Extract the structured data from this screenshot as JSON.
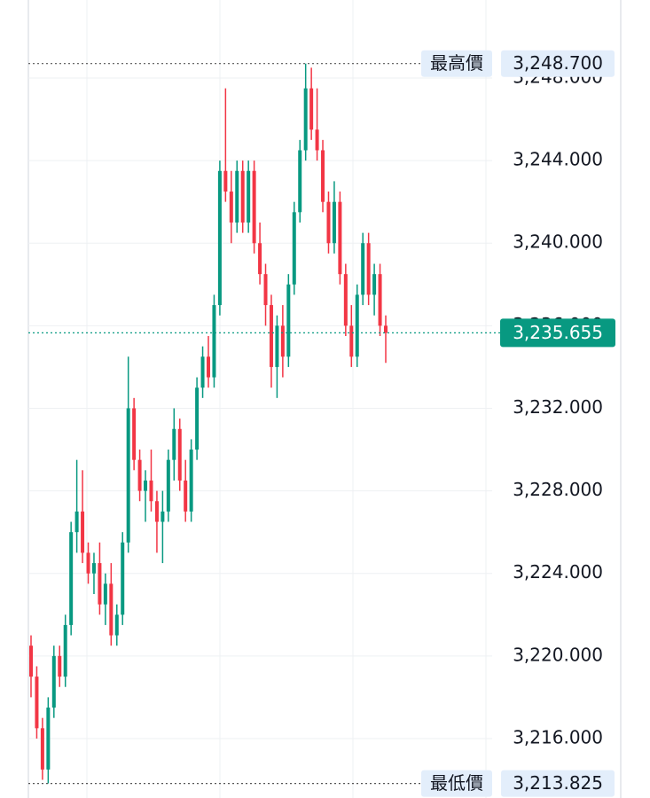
{
  "chart_data": {
    "type": "candlestick",
    "categories": [
      null,
      null,
      null,
      null,
      null,
      null,
      null,
      null,
      null,
      null,
      null,
      null,
      null,
      null,
      null,
      null,
      null,
      null,
      null,
      null,
      null,
      null,
      null,
      null,
      null,
      null,
      null,
      null,
      null,
      null,
      null,
      null,
      null,
      null,
      null,
      null,
      null,
      null,
      null,
      null,
      null,
      null,
      null,
      null,
      null,
      null,
      null,
      null,
      null,
      null,
      null,
      null,
      null,
      null,
      null,
      null,
      null,
      null,
      null,
      null,
      null,
      null,
      null
    ],
    "open": [
      3220.5,
      3219,
      3216.5,
      3214.5,
      3217.5,
      3220,
      3219,
      3221.5,
      3226,
      3227,
      3225,
      3224,
      3224.5,
      3222.5,
      3223.5,
      3221,
      3222,
      3225.5,
      3232,
      3229.5,
      3228,
      3228.5,
      3227.5,
      3226.5,
      3227,
      3229.5,
      3231,
      3228.5,
      3227,
      3230,
      3233,
      3234.5,
      3233.5,
      3237,
      3243.5,
      3242.5,
      3241,
      3243.5,
      3241,
      3243.5,
      3240,
      3238.5,
      3237,
      3234,
      3236,
      3234.5,
      3238,
      3241.5,
      3244.5,
      3247.5,
      3245.5,
      3244.5,
      3242,
      3240,
      3242,
      3238.5,
      3236,
      3234.5,
      3237.5,
      3240,
      3237.5,
      3238.5,
      3236
    ],
    "high": [
      3221,
      3219.5,
      3217,
      3218,
      3220.5,
      3220.5,
      3222,
      3226.5,
      3229.5,
      3229,
      3225.5,
      3225,
      3225.5,
      3224,
      3224.5,
      3222.5,
      3226,
      3234.5,
      3232.5,
      3230,
      3229,
      3230,
      3228,
      3228,
      3230,
      3232,
      3231.5,
      3229.5,
      3230.5,
      3233.5,
      3235,
      3235.5,
      3237.5,
      3244,
      3247.5,
      3243.5,
      3244,
      3244,
      3244,
      3244,
      3241,
      3239,
      3237.5,
      3236.5,
      3237,
      3238.5,
      3242,
      3245,
      3248.7,
      3248.5,
      3247.5,
      3245,
      3242.5,
      3243,
      3242.5,
      3239,
      3237,
      3238,
      3240.5,
      3240.5,
      3239,
      3239,
      3236.5
    ],
    "low": [
      3218,
      3216,
      3214,
      3213.825,
      3217,
      3218.5,
      3218.5,
      3221,
      3225,
      3224.5,
      3223.5,
      3223,
      3222,
      3221.5,
      3220.5,
      3220.5,
      3221.5,
      3225,
      3229,
      3227.5,
      3226.5,
      3227,
      3225,
      3224.5,
      3226.5,
      3228.5,
      3228,
      3226.5,
      3226.5,
      3229.5,
      3232.5,
      3233,
      3233,
      3236.5,
      3242,
      3240,
      3240.5,
      3240.5,
      3240.5,
      3239.5,
      3238,
      3236,
      3233,
      3232.5,
      3233.5,
      3234,
      3237.5,
      3241,
      3244,
      3245,
      3244,
      3241.5,
      3239.5,
      3239.5,
      3238,
      3235.5,
      3234,
      3234,
      3237,
      3237,
      3236.5,
      3235.5,
      3234.2
    ],
    "close": [
      3219,
      3216.5,
      3214.5,
      3217.5,
      3220,
      3219,
      3221.5,
      3226,
      3227,
      3225,
      3224,
      3224.5,
      3222.5,
      3223.5,
      3221,
      3222,
      3225.5,
      3232,
      3229.5,
      3228,
      3228.5,
      3227.5,
      3226.5,
      3227,
      3229.5,
      3231,
      3228.5,
      3227,
      3230,
      3233,
      3234.5,
      3233.5,
      3237,
      3243.5,
      3242.5,
      3241,
      3243.5,
      3241,
      3243.5,
      3240,
      3238.5,
      3237,
      3234,
      3236,
      3234.5,
      3238,
      3241.5,
      3244.5,
      3247.5,
      3245.5,
      3244.5,
      3242,
      3240,
      3242,
      3238.5,
      3236,
      3234.5,
      3237.5,
      3240,
      3237.5,
      3238.5,
      3236,
      3235.655
    ],
    "up_color": "#089981",
    "down_color": "#f23645",
    "ylim": [
      3213.12,
      3251.78
    ],
    "yticks": [
      {
        "value": 3216,
        "label": "3,216.000"
      },
      {
        "value": 3220,
        "label": "3,220.000"
      },
      {
        "value": 3224,
        "label": "3,224.000"
      },
      {
        "value": 3228,
        "label": "3,228.000"
      },
      {
        "value": 3232,
        "label": "3,232.000"
      },
      {
        "value": 3236,
        "label": "3,236.000"
      },
      {
        "value": 3240,
        "label": "3,240.000"
      },
      {
        "value": 3244,
        "label": "3,244.000"
      },
      {
        "value": 3248,
        "label": "3,248.000"
      }
    ],
    "grid": true,
    "markers": [
      {
        "name": "最高價",
        "value": 3248.7,
        "value_label": "3,248.700"
      },
      {
        "name": "最低價",
        "value": 3213.825,
        "value_label": "3,213.825"
      }
    ],
    "last": {
      "value": 3235.655,
      "value_label": "3,235.655",
      "color": "#089981"
    }
  }
}
